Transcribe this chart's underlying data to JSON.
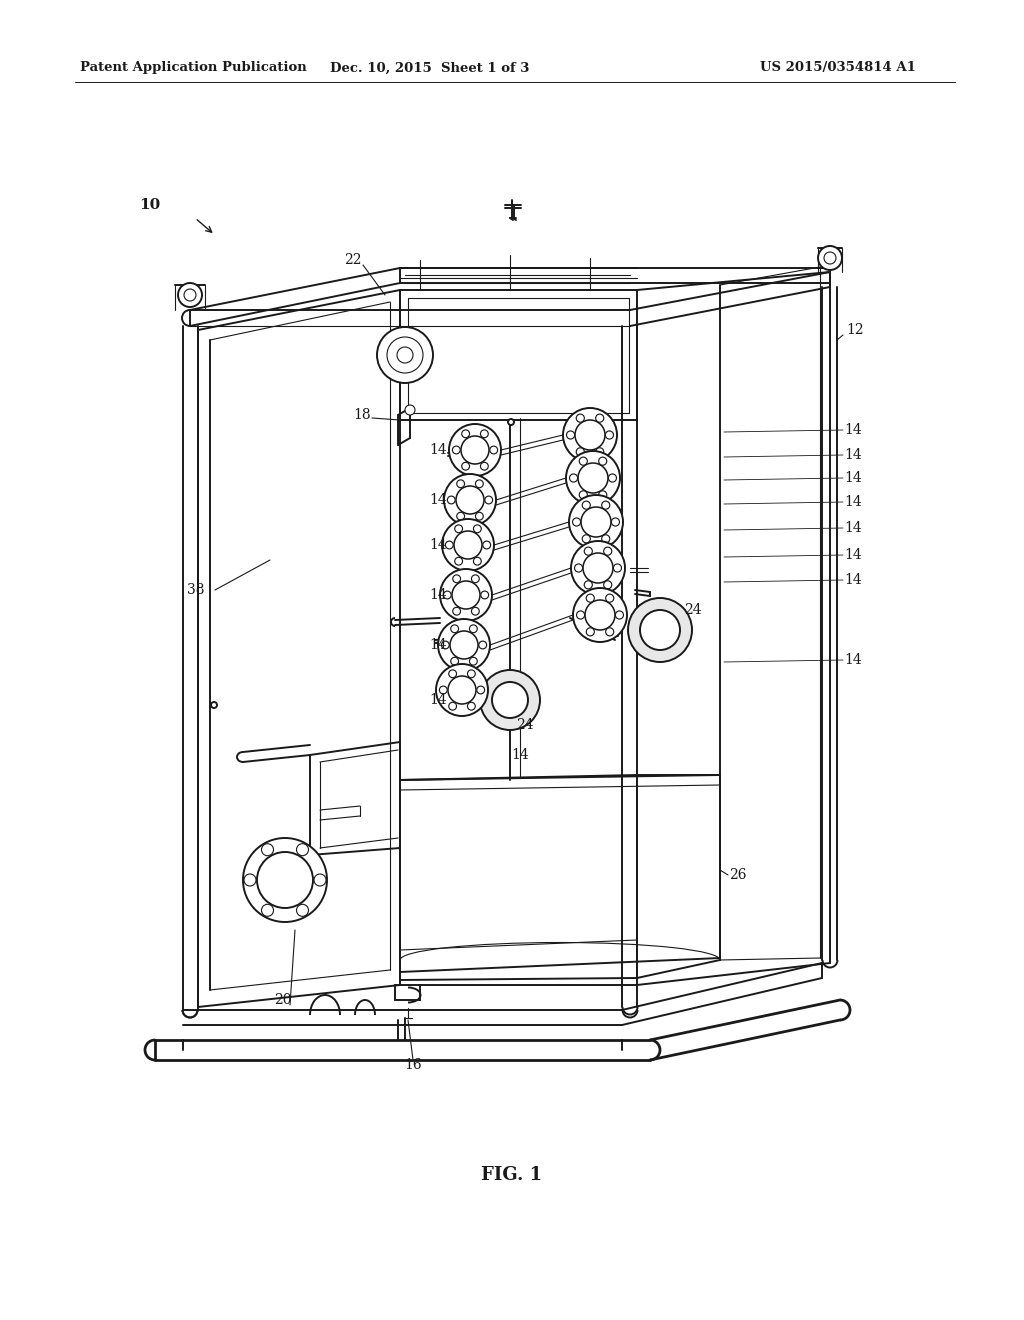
{
  "background_color": "#ffffff",
  "header_left": "Patent Application Publication",
  "header_center": "Dec. 10, 2015  Sheet 1 of 3",
  "header_right": "US 2015/0354814 A1",
  "figure_label": "FIG. 1",
  "lw_main": 1.4,
  "lw_thin": 0.8,
  "lw_thick": 2.0,
  "color": "#1a1a1a"
}
